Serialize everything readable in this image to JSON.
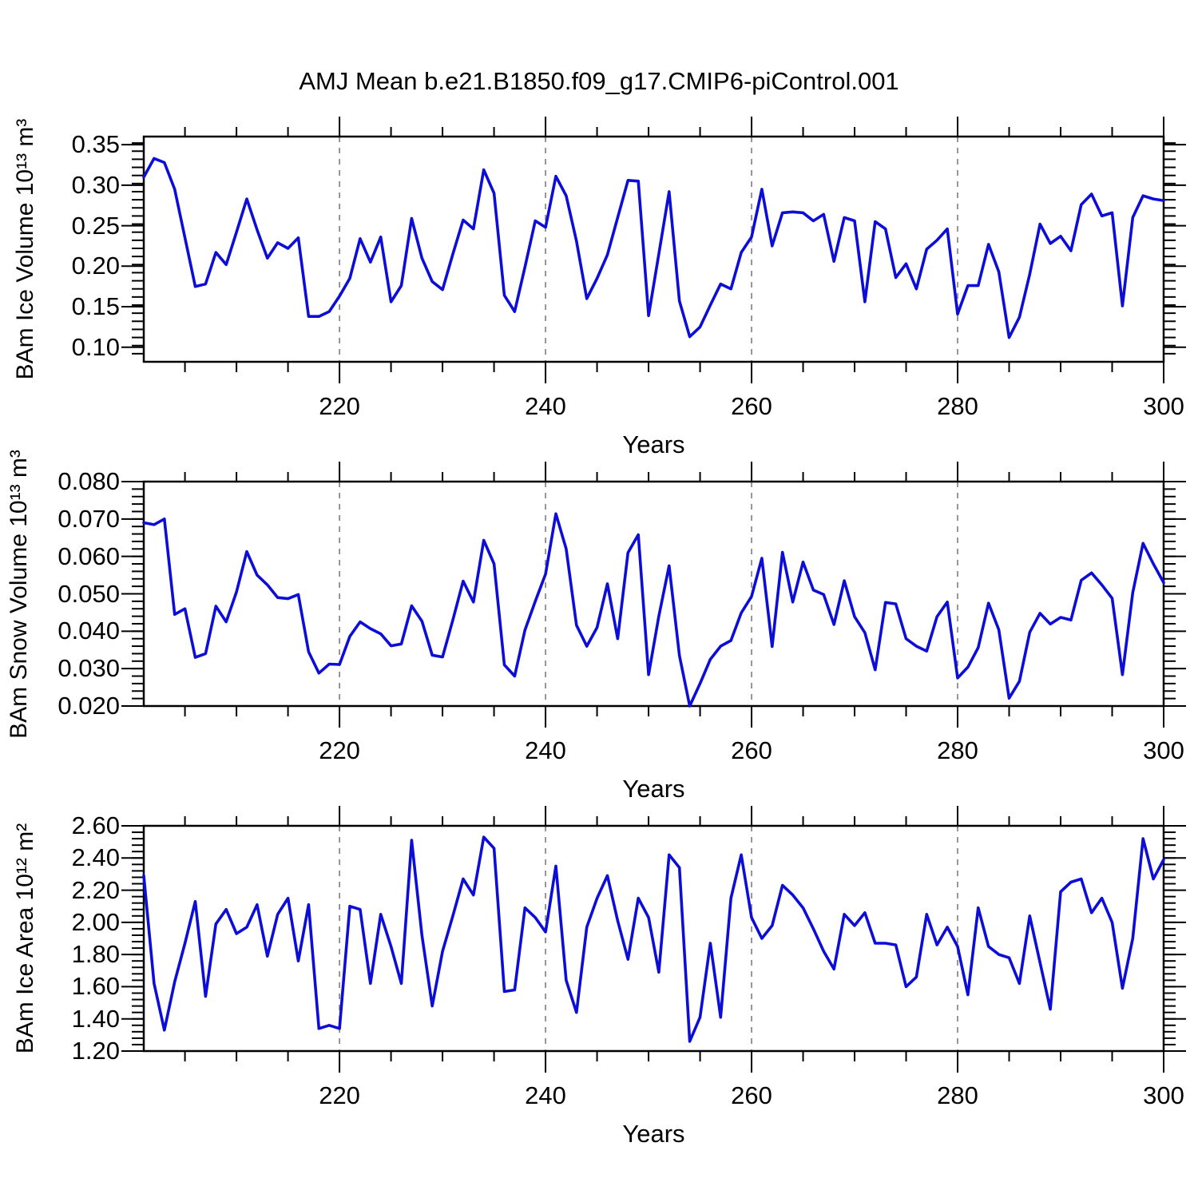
{
  "title": "AMJ Mean b.e21.B1850.f09_g17.CMIP6-piControl.001",
  "x_axis_label": "Years",
  "line_color": "#0d0dd8",
  "grid_color": "#858585",
  "axis_color": "#000000",
  "chart_data": [
    {
      "id": "ice_volume",
      "type": "line",
      "title": "",
      "ylabel": "BAm Ice Volume 10¹³ m³",
      "xlabel": "Years",
      "x_start": 201,
      "x_end": 300,
      "x_major_ticks": [
        220,
        240,
        260,
        280,
        300
      ],
      "x_minor_ticks": [
        205,
        210,
        215,
        225,
        230,
        235,
        245,
        250,
        255,
        265,
        270,
        275,
        285,
        290,
        295
      ],
      "grid_years": [
        220,
        240,
        260,
        280
      ],
      "ylim": [
        0.082,
        0.36
      ],
      "y_major_ticks": [
        0.1,
        0.15,
        0.2,
        0.25,
        0.3,
        0.35
      ],
      "y_tick_labels": [
        "0.10",
        "0.15",
        "0.20",
        "0.25",
        "0.30",
        "0.35"
      ],
      "y_minor_step": 0.01,
      "legend": "none",
      "grid": "vertical-dashed",
      "values": [
        0.31,
        0.333,
        0.328,
        0.295,
        0.235,
        0.175,
        0.178,
        0.217,
        0.202,
        0.242,
        0.283,
        0.245,
        0.21,
        0.229,
        0.222,
        0.235,
        0.138,
        0.138,
        0.144,
        0.163,
        0.185,
        0.234,
        0.205,
        0.236,
        0.156,
        0.176,
        0.259,
        0.21,
        0.181,
        0.171,
        0.215,
        0.257,
        0.246,
        0.319,
        0.29,
        0.164,
        0.144,
        0.199,
        0.256,
        0.248,
        0.311,
        0.287,
        0.231,
        0.16,
        0.185,
        0.214,
        0.26,
        0.306,
        0.305,
        0.139,
        0.215,
        0.292,
        0.157,
        0.113,
        0.125,
        0.152,
        0.178,
        0.172,
        0.217,
        0.236,
        0.295,
        0.225,
        0.266,
        0.267,
        0.266,
        0.256,
        0.264,
        0.206,
        0.26,
        0.256,
        0.156,
        0.255,
        0.246,
        0.186,
        0.203,
        0.172,
        0.221,
        0.232,
        0.246,
        0.141,
        0.176,
        0.176,
        0.227,
        0.193,
        0.112,
        0.137,
        0.19,
        0.252,
        0.228,
        0.237,
        0.219,
        0.276,
        0.289,
        0.262,
        0.266,
        0.151,
        0.26,
        0.287,
        0.283,
        0.281
      ]
    },
    {
      "id": "snow_volume",
      "type": "line",
      "title": "",
      "ylabel": "BAm Snow Volume 10¹³ m³",
      "xlabel": "Years",
      "x_start": 201,
      "x_end": 300,
      "x_major_ticks": [
        220,
        240,
        260,
        280,
        300
      ],
      "x_minor_ticks": [
        205,
        210,
        215,
        225,
        230,
        235,
        245,
        250,
        255,
        265,
        270,
        275,
        285,
        290,
        295
      ],
      "grid_years": [
        220,
        240,
        260,
        280
      ],
      "ylim": [
        0.02,
        0.08
      ],
      "y_major_ticks": [
        0.02,
        0.03,
        0.04,
        0.05,
        0.06,
        0.07,
        0.08
      ],
      "y_tick_labels": [
        "0.020",
        "0.030",
        "0.040",
        "0.050",
        "0.060",
        "0.070",
        "0.080"
      ],
      "y_minor_step": 0.002,
      "legend": "none",
      "grid": "vertical-dashed",
      "values": [
        0.069,
        0.0685,
        0.07,
        0.0445,
        0.046,
        0.033,
        0.034,
        0.0467,
        0.0425,
        0.0505,
        0.0613,
        0.055,
        0.0524,
        0.049,
        0.0487,
        0.0498,
        0.0345,
        0.0288,
        0.0312,
        0.0311,
        0.0386,
        0.0425,
        0.0407,
        0.0393,
        0.0361,
        0.0366,
        0.0468,
        0.0427,
        0.0336,
        0.0331,
        0.043,
        0.0534,
        0.0478,
        0.0643,
        0.058,
        0.031,
        0.028,
        0.0403,
        0.048,
        0.0553,
        0.0714,
        0.062,
        0.0416,
        0.036,
        0.041,
        0.0527,
        0.038,
        0.061,
        0.0658,
        0.0284,
        0.044,
        0.0575,
        0.0335,
        0.02,
        0.026,
        0.0325,
        0.036,
        0.0375,
        0.0449,
        0.0493,
        0.0595,
        0.0359,
        0.0611,
        0.0478,
        0.0585,
        0.051,
        0.0498,
        0.0418,
        0.0535,
        0.0439,
        0.0396,
        0.0297,
        0.0477,
        0.0473,
        0.038,
        0.036,
        0.0347,
        0.0439,
        0.0478,
        0.0275,
        0.0304,
        0.0356,
        0.0475,
        0.0404,
        0.0221,
        0.0266,
        0.0397,
        0.0448,
        0.0419,
        0.0437,
        0.043,
        0.0536,
        0.0556,
        0.0524,
        0.0488,
        0.0284,
        0.0503,
        0.0635,
        0.058,
        0.053
      ]
    },
    {
      "id": "ice_area",
      "type": "line",
      "title": "",
      "ylabel": "BAm Ice Area 10¹² m²",
      "xlabel": "Years",
      "x_start": 201,
      "x_end": 300,
      "x_major_ticks": [
        220,
        240,
        260,
        280,
        300
      ],
      "x_minor_ticks": [
        205,
        210,
        215,
        225,
        230,
        235,
        245,
        250,
        255,
        265,
        270,
        275,
        285,
        290,
        295
      ],
      "grid_years": [
        220,
        240,
        260,
        280
      ],
      "ylim": [
        1.2,
        2.6
      ],
      "y_major_ticks": [
        1.2,
        1.4,
        1.6,
        1.8,
        2.0,
        2.2,
        2.4,
        2.6
      ],
      "y_tick_labels": [
        "1.20",
        "1.40",
        "1.60",
        "1.80",
        "2.00",
        "2.20",
        "2.40",
        "2.60"
      ],
      "y_minor_step": 0.04,
      "legend": "none",
      "grid": "vertical-dashed",
      "values": [
        2.29,
        1.62,
        1.33,
        1.63,
        1.87,
        2.13,
        1.54,
        1.99,
        2.08,
        1.93,
        1.97,
        2.11,
        1.79,
        2.05,
        2.15,
        1.76,
        2.11,
        1.34,
        1.36,
        1.34,
        2.1,
        2.08,
        1.62,
        2.05,
        1.85,
        1.62,
        2.51,
        1.92,
        1.48,
        1.82,
        2.04,
        2.27,
        2.17,
        2.53,
        2.46,
        1.57,
        1.58,
        2.09,
        2.03,
        1.94,
        2.35,
        1.64,
        1.44,
        1.97,
        2.15,
        2.29,
        2.01,
        1.77,
        2.15,
        2.03,
        1.69,
        2.42,
        2.34,
        1.26,
        1.41,
        1.87,
        1.41,
        2.15,
        2.42,
        2.03,
        1.9,
        1.98,
        2.23,
        2.17,
        2.09,
        1.96,
        1.82,
        1.71,
        2.05,
        1.98,
        2.06,
        1.87,
        1.87,
        1.86,
        1.6,
        1.66,
        2.05,
        1.86,
        1.97,
        1.85,
        1.55,
        2.09,
        1.85,
        1.8,
        1.78,
        1.62,
        2.04,
        1.75,
        1.46,
        2.19,
        2.25,
        2.27,
        2.06,
        2.15,
        2.0,
        1.59,
        1.9,
        2.52,
        2.27,
        2.39
      ]
    }
  ]
}
